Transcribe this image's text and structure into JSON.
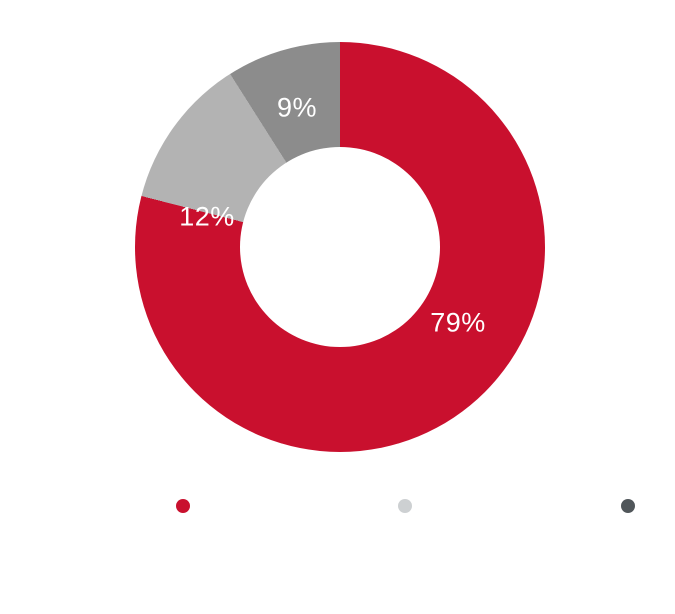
{
  "page": {
    "background": "#ffffff"
  },
  "chart_data": {
    "type": "pie",
    "subtype": "donut",
    "title": "",
    "segments": [
      {
        "value": 79,
        "display_label": "79%",
        "color": "#c9102e"
      },
      {
        "value": 12,
        "display_label": "12%",
        "color": "#b3b3b3"
      },
      {
        "value": 9,
        "display_label": "9%",
        "color": "#8c8c8c"
      }
    ],
    "start_angle_deg": 0,
    "direction": "clockwise",
    "donut_hole_ratio": 0.49,
    "slice_label_color": "#ffffff",
    "legend_position": "bottom"
  },
  "legend": {
    "items": [
      {
        "color": "#c9102e"
      },
      {
        "color": "#cdd0d2"
      },
      {
        "color": "#50565a"
      }
    ]
  }
}
